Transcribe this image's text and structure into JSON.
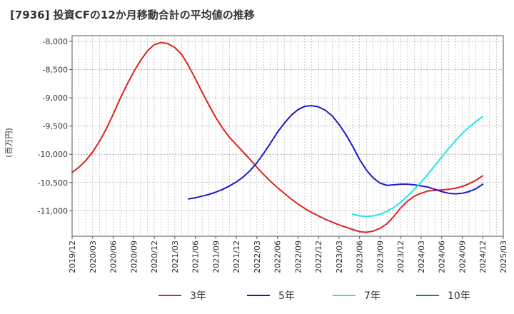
{
  "title": "[7936]  投資CFの12か月移動合計の平均値の推移",
  "chart_data": {
    "type": "line",
    "ylabel": "(百万円)",
    "ylim": [
      -11450,
      -7900
    ],
    "yticks": [
      -8000,
      -8500,
      -9000,
      -9500,
      -10000,
      -10500,
      -11000
    ],
    "ytick_labels": [
      "-8,000",
      "-8,500",
      "-9,000",
      "-9,500",
      "-10,000",
      "-10,500",
      "-11,000"
    ],
    "x_tick_labels": [
      "2019/12",
      "2020/03",
      "2020/06",
      "2020/09",
      "2020/12",
      "2021/03",
      "2021/06",
      "2021/09",
      "2021/12",
      "2022/03",
      "2022/06",
      "2022/09",
      "2022/12",
      "2023/03",
      "2023/06",
      "2023/09",
      "2023/12",
      "2024/03",
      "2024/06",
      "2024/09",
      "2024/12",
      "2025/03"
    ],
    "x_start": "2019/12",
    "grid": true,
    "legend_position": "bottom",
    "series": [
      {
        "name": "3年",
        "color": "#dd2222",
        "x": [
          "2019/12",
          "2020/01",
          "2020/02",
          "2020/03",
          "2020/04",
          "2020/05",
          "2020/06",
          "2020/07",
          "2020/08",
          "2020/09",
          "2020/10",
          "2020/11",
          "2020/12",
          "2021/01",
          "2021/02",
          "2021/03",
          "2021/04",
          "2021/05",
          "2021/06",
          "2021/07",
          "2021/08",
          "2021/09",
          "2021/10",
          "2021/11",
          "2021/12",
          "2022/01",
          "2022/02",
          "2022/03",
          "2022/04",
          "2022/05",
          "2022/06",
          "2022/07",
          "2022/08",
          "2022/09",
          "2022/10",
          "2022/11",
          "2022/12",
          "2023/01",
          "2023/02",
          "2023/03",
          "2023/04",
          "2023/05",
          "2023/06",
          "2023/07",
          "2023/08",
          "2023/09",
          "2023/10",
          "2023/11",
          "2023/12",
          "2024/01",
          "2024/02",
          "2024/03",
          "2024/04",
          "2024/05",
          "2024/06",
          "2024/07",
          "2024/08",
          "2024/09",
          "2024/10",
          "2024/11",
          "2024/12"
        ],
        "values": [
          -10320,
          -10230,
          -10110,
          -9960,
          -9770,
          -9550,
          -9290,
          -9020,
          -8770,
          -8540,
          -8340,
          -8170,
          -8060,
          -8020,
          -8040,
          -8110,
          -8230,
          -8430,
          -8660,
          -8900,
          -9130,
          -9350,
          -9540,
          -9700,
          -9830,
          -9960,
          -10090,
          -10230,
          -10360,
          -10480,
          -10590,
          -10690,
          -10790,
          -10880,
          -10960,
          -11030,
          -11090,
          -11150,
          -11200,
          -11250,
          -11290,
          -11330,
          -11370,
          -11380,
          -11360,
          -11310,
          -11230,
          -11100,
          -10950,
          -10830,
          -10740,
          -10690,
          -10650,
          -10640,
          -10630,
          -10620,
          -10600,
          -10570,
          -10520,
          -10460,
          -10380
        ]
      },
      {
        "name": "5年",
        "color": "#1a1acc",
        "x": [
          "2021/05",
          "2021/06",
          "2021/07",
          "2021/08",
          "2021/09",
          "2021/10",
          "2021/11",
          "2021/12",
          "2022/01",
          "2022/02",
          "2022/03",
          "2022/04",
          "2022/05",
          "2022/06",
          "2022/07",
          "2022/08",
          "2022/09",
          "2022/10",
          "2022/11",
          "2022/12",
          "2023/01",
          "2023/02",
          "2023/03",
          "2023/04",
          "2023/05",
          "2023/06",
          "2023/07",
          "2023/08",
          "2023/09",
          "2023/10",
          "2023/11",
          "2023/12",
          "2024/01",
          "2024/02",
          "2024/03",
          "2024/04",
          "2024/05",
          "2024/06",
          "2024/07",
          "2024/08",
          "2024/09",
          "2024/10",
          "2024/11",
          "2024/12"
        ],
        "values": [
          -10790,
          -10770,
          -10740,
          -10710,
          -10670,
          -10620,
          -10560,
          -10490,
          -10400,
          -10290,
          -10150,
          -9980,
          -9800,
          -9610,
          -9450,
          -9310,
          -9210,
          -9150,
          -9140,
          -9160,
          -9220,
          -9320,
          -9470,
          -9650,
          -9860,
          -10090,
          -10280,
          -10420,
          -10510,
          -10550,
          -10540,
          -10530,
          -10530,
          -10540,
          -10560,
          -10580,
          -10620,
          -10660,
          -10690,
          -10700,
          -10690,
          -10660,
          -10610,
          -10530
        ]
      },
      {
        "name": "7年",
        "color": "#22e6e6",
        "x": [
          "2023/05",
          "2023/06",
          "2023/07",
          "2023/08",
          "2023/09",
          "2023/10",
          "2023/11",
          "2023/12",
          "2024/01",
          "2024/02",
          "2024/03",
          "2024/04",
          "2024/05",
          "2024/06",
          "2024/07",
          "2024/08",
          "2024/09",
          "2024/10",
          "2024/11",
          "2024/12"
        ],
        "values": [
          -11060,
          -11090,
          -11100,
          -11090,
          -11060,
          -11010,
          -10940,
          -10850,
          -10740,
          -10620,
          -10490,
          -10350,
          -10200,
          -10050,
          -9900,
          -9760,
          -9630,
          -9520,
          -9420,
          -9330
        ]
      },
      {
        "name": "10年",
        "color": "#228B22",
        "x": [],
        "values": []
      }
    ]
  }
}
